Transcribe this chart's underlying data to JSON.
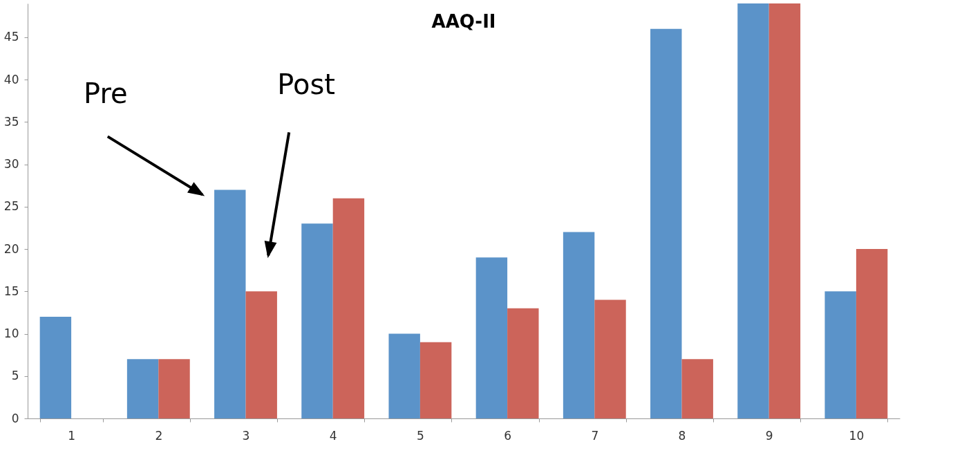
{
  "chart_data": {
    "type": "bar",
    "title": "AAQ-II",
    "categories": [
      "1",
      "2",
      "3",
      "4",
      "5",
      "6",
      "7",
      "8",
      "9",
      "10"
    ],
    "series": [
      {
        "color": "#5b93c9",
        "values": [
          12,
          7,
          27,
          23,
          10,
          19,
          22,
          46,
          49,
          15
        ]
      },
      {
        "color": "#cc645a",
        "values": [
          0,
          7,
          15,
          26,
          9,
          13,
          14,
          7,
          49,
          20
        ]
      }
    ],
    "annotations": [
      "Pre",
      "Post"
    ],
    "ylim": [
      0,
      49
    ],
    "yticks": [
      0,
      5,
      10,
      15,
      20,
      25,
      30,
      35,
      40,
      45
    ],
    "grid": false,
    "legend": false
  }
}
